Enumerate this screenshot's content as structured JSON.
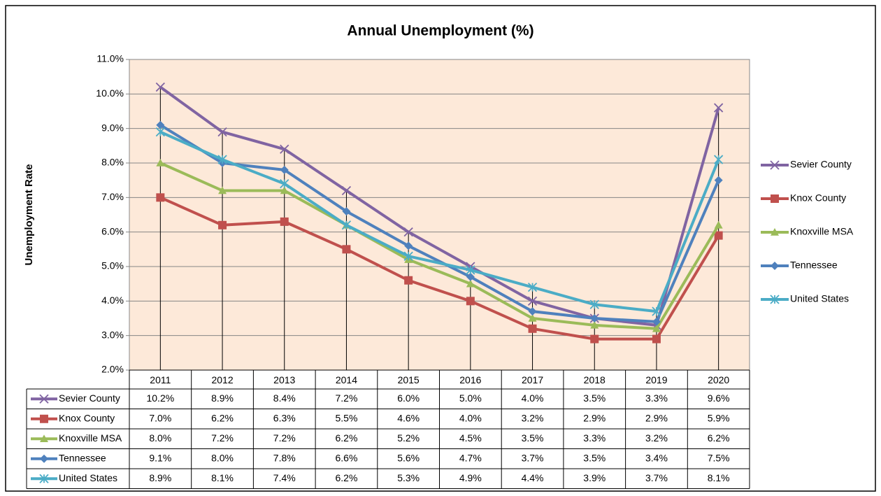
{
  "chart_data": {
    "type": "line",
    "title": "Annual Unemployment (%)",
    "y_label": "Unemployment Rate",
    "categories": [
      "2011",
      "2012",
      "2013",
      "2014",
      "2015",
      "2016",
      "2017",
      "2018",
      "2019",
      "2020"
    ],
    "ylim": [
      2,
      11
    ],
    "yticks": [
      {
        "value": 2,
        "label": "2.0%"
      },
      {
        "value": 3,
        "label": "3.0%"
      },
      {
        "value": 4,
        "label": "4.0%"
      },
      {
        "value": 5,
        "label": "5.0%"
      },
      {
        "value": 6,
        "label": "6.0%"
      },
      {
        "value": 7,
        "label": "7.0%"
      },
      {
        "value": 8,
        "label": "8.0%"
      },
      {
        "value": 9,
        "label": "9.0%"
      },
      {
        "value": 10,
        "label": "10.0%"
      },
      {
        "value": 11,
        "label": "11.0%"
      }
    ],
    "grid": true,
    "drop_lines": true,
    "legend": "right",
    "series": [
      {
        "name": "Sevier County",
        "color": "#8064a2",
        "marker": "x",
        "values": [
          10.2,
          8.9,
          8.4,
          7.2,
          6.0,
          5.0,
          4.0,
          3.5,
          3.3,
          9.6
        ],
        "value_labels": [
          "10.2%",
          "8.9%",
          "8.4%",
          "7.2%",
          "6.0%",
          "5.0%",
          "4.0%",
          "3.5%",
          "3.3%",
          "9.6%"
        ]
      },
      {
        "name": "Knox County",
        "color": "#c0504d",
        "marker": "square",
        "values": [
          7.0,
          6.2,
          6.3,
          5.5,
          4.6,
          4.0,
          3.2,
          2.9,
          2.9,
          5.9
        ],
        "value_labels": [
          "7.0%",
          "6.2%",
          "6.3%",
          "5.5%",
          "4.6%",
          "4.0%",
          "3.2%",
          "2.9%",
          "2.9%",
          "5.9%"
        ]
      },
      {
        "name": "Knoxville MSA",
        "color": "#9bbb59",
        "marker": "triangle",
        "values": [
          8.0,
          7.2,
          7.2,
          6.2,
          5.2,
          4.5,
          3.5,
          3.3,
          3.2,
          6.2
        ],
        "value_labels": [
          "8.0%",
          "7.2%",
          "7.2%",
          "6.2%",
          "5.2%",
          "4.5%",
          "3.5%",
          "3.3%",
          "3.2%",
          "6.2%"
        ]
      },
      {
        "name": "Tennessee",
        "color": "#4f81bd",
        "marker": "diamond",
        "values": [
          9.1,
          8.0,
          7.8,
          6.6,
          5.6,
          4.7,
          3.7,
          3.5,
          3.4,
          7.5
        ],
        "value_labels": [
          "9.1%",
          "8.0%",
          "7.8%",
          "6.6%",
          "5.6%",
          "4.7%",
          "3.7%",
          "3.5%",
          "3.4%",
          "7.5%"
        ]
      },
      {
        "name": "United States",
        "color": "#4bacc6",
        "marker": "star",
        "values": [
          8.9,
          8.1,
          7.4,
          6.2,
          5.3,
          4.9,
          4.4,
          3.9,
          3.7,
          8.1
        ],
        "value_labels": [
          "8.9%",
          "8.1%",
          "7.4%",
          "6.2%",
          "5.3%",
          "4.9%",
          "4.4%",
          "3.9%",
          "3.7%",
          "8.1%"
        ]
      }
    ]
  }
}
